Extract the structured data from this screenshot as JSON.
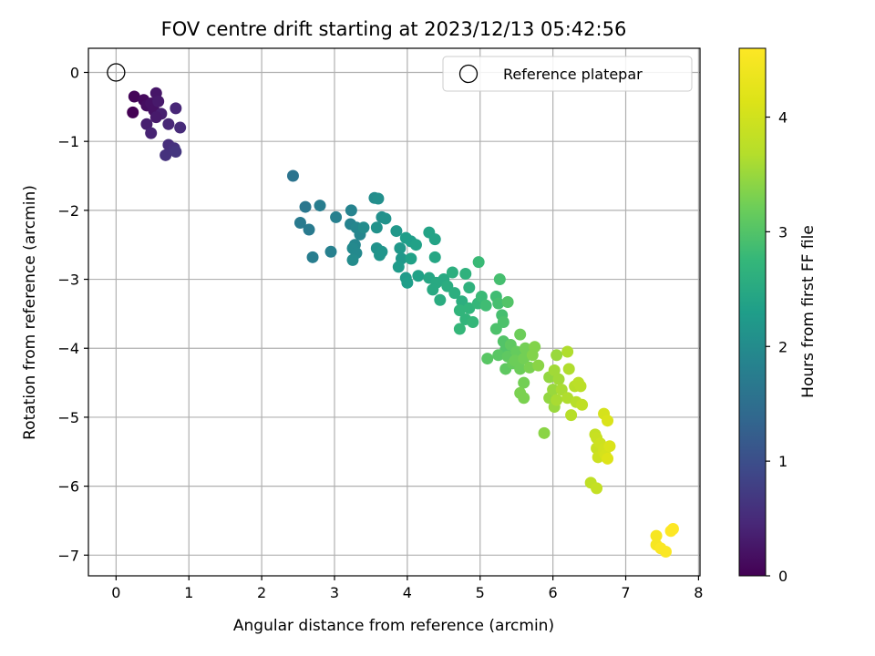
{
  "chart_data": {
    "type": "scatter",
    "title": "FOV centre drift starting at 2023/12/13 05:42:56",
    "xlabel": "Angular distance from reference (arcmin)",
    "ylabel": "Rotation from reference (arcmin)",
    "xlim": [
      -0.38,
      8.02
    ],
    "ylim": [
      -7.3,
      0.35
    ],
    "xticks": [
      0,
      1,
      2,
      3,
      4,
      5,
      6,
      7,
      8
    ],
    "yticks": [
      0,
      -1,
      -2,
      -3,
      -4,
      -5,
      -6,
      -7
    ],
    "grid": true,
    "legend": {
      "position": "top-right",
      "entries": [
        "Reference platepar"
      ]
    },
    "reference_point": {
      "x": 0,
      "y": 0,
      "label": "Reference platepar"
    },
    "colorbar": {
      "label": "Hours from first FF file",
      "range": [
        0,
        4.6
      ],
      "ticks": [
        0,
        1,
        2,
        3,
        4
      ],
      "colormap": "viridis"
    },
    "series": [
      {
        "marker": "filled-circle",
        "columns": [
          "x",
          "y",
          "hours"
        ],
        "points": [
          [
            0.25,
            -0.35,
            0.05
          ],
          [
            0.23,
            -0.58,
            0.0
          ],
          [
            0.38,
            -0.4,
            0.1
          ],
          [
            0.42,
            -0.48,
            0.15
          ],
          [
            0.48,
            -0.45,
            0.2
          ],
          [
            0.52,
            -0.55,
            0.2
          ],
          [
            0.55,
            -0.3,
            0.25
          ],
          [
            0.58,
            -0.42,
            0.3
          ],
          [
            0.62,
            -0.6,
            0.35
          ],
          [
            0.55,
            -0.65,
            0.3
          ],
          [
            0.42,
            -0.75,
            0.35
          ],
          [
            0.48,
            -0.88,
            0.4
          ],
          [
            0.72,
            -0.75,
            0.45
          ],
          [
            0.82,
            -0.52,
            0.45
          ],
          [
            0.88,
            -0.8,
            0.5
          ],
          [
            0.72,
            -1.05,
            0.55
          ],
          [
            0.8,
            -1.1,
            0.6
          ],
          [
            0.68,
            -1.2,
            0.6
          ],
          [
            0.82,
            -1.15,
            0.65
          ],
          [
            2.43,
            -1.5,
            1.6
          ],
          [
            2.6,
            -1.95,
            1.65
          ],
          [
            2.53,
            -2.18,
            1.7
          ],
          [
            2.65,
            -2.28,
            1.7
          ],
          [
            2.8,
            -1.93,
            1.75
          ],
          [
            2.7,
            -2.68,
            1.75
          ],
          [
            3.02,
            -2.1,
            1.8
          ],
          [
            2.95,
            -2.6,
            1.8
          ],
          [
            3.23,
            -2.0,
            1.85
          ],
          [
            3.22,
            -2.2,
            1.85
          ],
          [
            3.3,
            -2.25,
            1.9
          ],
          [
            3.35,
            -2.35,
            1.9
          ],
          [
            3.28,
            -2.5,
            1.9
          ],
          [
            3.25,
            -2.55,
            1.95
          ],
          [
            3.3,
            -2.62,
            1.95
          ],
          [
            3.25,
            -2.72,
            2.0
          ],
          [
            3.4,
            -2.25,
            2.0
          ],
          [
            3.55,
            -1.82,
            2.0
          ],
          [
            3.6,
            -1.83,
            2.05
          ],
          [
            3.65,
            -2.1,
            2.05
          ],
          [
            3.58,
            -2.25,
            2.1
          ],
          [
            3.7,
            -2.12,
            2.1
          ],
          [
            3.58,
            -2.55,
            2.1
          ],
          [
            3.65,
            -2.6,
            2.15
          ],
          [
            3.62,
            -2.65,
            2.15
          ],
          [
            3.85,
            -2.3,
            2.2
          ],
          [
            3.9,
            -2.55,
            2.2
          ],
          [
            3.92,
            -2.7,
            2.2
          ],
          [
            3.88,
            -2.82,
            2.25
          ],
          [
            3.98,
            -2.98,
            2.25
          ],
          [
            4.0,
            -3.05,
            2.3
          ],
          [
            3.98,
            -2.4,
            2.3
          ],
          [
            4.05,
            -2.45,
            2.3
          ],
          [
            4.12,
            -2.5,
            2.35
          ],
          [
            4.05,
            -2.7,
            2.35
          ],
          [
            4.15,
            -2.95,
            2.35
          ],
          [
            4.3,
            -2.32,
            2.4
          ],
          [
            4.38,
            -2.42,
            2.4
          ],
          [
            4.38,
            -2.68,
            2.45
          ],
          [
            4.3,
            -2.98,
            2.45
          ],
          [
            4.4,
            -3.05,
            2.5
          ],
          [
            4.35,
            -3.15,
            2.5
          ],
          [
            4.5,
            -3.0,
            2.5
          ],
          [
            4.45,
            -3.3,
            2.55
          ],
          [
            4.55,
            -3.1,
            2.55
          ],
          [
            4.62,
            -2.9,
            2.6
          ],
          [
            4.65,
            -3.2,
            2.6
          ],
          [
            4.75,
            -3.32,
            2.6
          ],
          [
            4.8,
            -2.92,
            2.65
          ],
          [
            4.85,
            -3.12,
            2.65
          ],
          [
            4.72,
            -3.45,
            2.7
          ],
          [
            4.8,
            -3.58,
            2.7
          ],
          [
            4.85,
            -3.42,
            2.7
          ],
          [
            4.9,
            -3.62,
            2.75
          ],
          [
            4.97,
            -3.35,
            2.75
          ],
          [
            4.72,
            -3.72,
            2.75
          ],
          [
            4.98,
            -2.75,
            2.8
          ],
          [
            5.02,
            -3.25,
            2.8
          ],
          [
            5.08,
            -3.38,
            2.85
          ],
          [
            5.22,
            -3.25,
            2.85
          ],
          [
            5.27,
            -3.0,
            2.9
          ],
          [
            5.25,
            -3.35,
            2.9
          ],
          [
            5.3,
            -3.52,
            2.9
          ],
          [
            5.32,
            -3.62,
            2.95
          ],
          [
            5.22,
            -3.72,
            2.95
          ],
          [
            5.38,
            -3.33,
            3.0
          ],
          [
            5.32,
            -3.9,
            3.0
          ],
          [
            5.35,
            -4.02,
            3.0
          ],
          [
            5.1,
            -4.15,
            3.05
          ],
          [
            5.25,
            -4.1,
            3.05
          ],
          [
            5.42,
            -3.95,
            3.1
          ],
          [
            5.38,
            -4.12,
            3.1
          ],
          [
            5.35,
            -4.3,
            3.1
          ],
          [
            5.45,
            -4.22,
            3.15
          ],
          [
            5.5,
            -4.05,
            3.15
          ],
          [
            5.48,
            -4.18,
            3.2
          ],
          [
            5.55,
            -3.8,
            3.2
          ],
          [
            5.55,
            -4.3,
            3.2
          ],
          [
            5.6,
            -4.15,
            3.25
          ],
          [
            5.62,
            -4.0,
            3.25
          ],
          [
            5.6,
            -4.5,
            3.25
          ],
          [
            5.55,
            -4.65,
            3.3
          ],
          [
            5.6,
            -4.72,
            3.3
          ],
          [
            5.68,
            -4.28,
            3.3
          ],
          [
            5.72,
            -4.1,
            3.35
          ],
          [
            5.75,
            -3.98,
            3.35
          ],
          [
            5.8,
            -4.25,
            3.4
          ],
          [
            5.88,
            -5.23,
            3.4
          ],
          [
            5.95,
            -4.42,
            3.45
          ],
          [
            5.95,
            -4.72,
            3.45
          ],
          [
            6.02,
            -4.85,
            3.5
          ],
          [
            6.0,
            -4.6,
            3.5
          ],
          [
            6.05,
            -4.1,
            3.5
          ],
          [
            6.02,
            -4.32,
            3.55
          ],
          [
            6.08,
            -4.45,
            3.55
          ],
          [
            6.12,
            -4.6,
            3.6
          ],
          [
            6.05,
            -4.75,
            3.6
          ],
          [
            6.2,
            -4.05,
            3.65
          ],
          [
            6.22,
            -4.3,
            3.65
          ],
          [
            6.2,
            -4.72,
            3.65
          ],
          [
            6.3,
            -4.55,
            3.7
          ],
          [
            6.32,
            -4.78,
            3.7
          ],
          [
            6.25,
            -4.97,
            3.7
          ],
          [
            6.35,
            -4.5,
            3.75
          ],
          [
            6.38,
            -4.55,
            3.75
          ],
          [
            6.4,
            -4.82,
            3.8
          ],
          [
            6.52,
            -5.95,
            3.8
          ],
          [
            6.6,
            -6.03,
            3.85
          ],
          [
            6.58,
            -5.25,
            3.85
          ],
          [
            6.6,
            -5.3,
            3.9
          ],
          [
            6.6,
            -5.45,
            3.9
          ],
          [
            6.62,
            -5.58,
            3.95
          ],
          [
            6.65,
            -5.38,
            3.95
          ],
          [
            6.7,
            -5.5,
            4.0
          ],
          [
            6.72,
            -5.45,
            4.0
          ],
          [
            6.72,
            -5.55,
            4.05
          ],
          [
            6.7,
            -4.95,
            4.05
          ],
          [
            6.75,
            -5.05,
            4.1
          ],
          [
            6.78,
            -5.42,
            4.1
          ],
          [
            6.75,
            -5.6,
            4.15
          ],
          [
            7.42,
            -6.72,
            4.5
          ],
          [
            7.42,
            -6.85,
            4.5
          ],
          [
            7.48,
            -6.9,
            4.55
          ],
          [
            7.55,
            -6.95,
            4.55
          ],
          [
            7.62,
            -6.65,
            4.6
          ],
          [
            7.65,
            -6.62,
            4.6
          ]
        ]
      }
    ]
  }
}
